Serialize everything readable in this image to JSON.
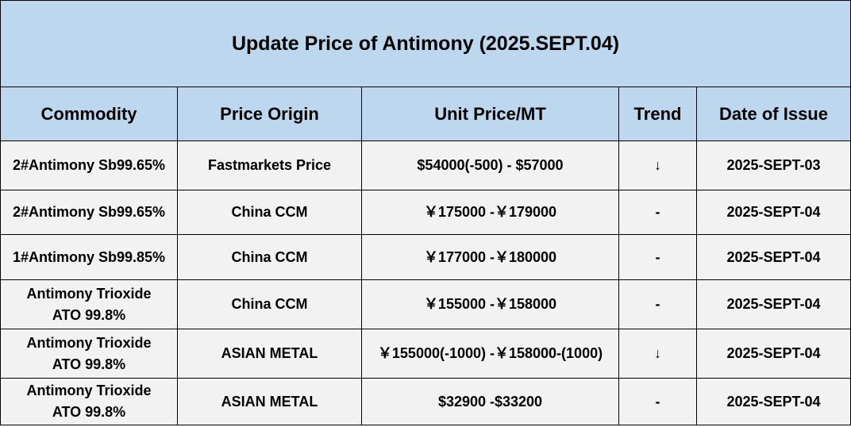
{
  "title": "Update Price of Antimony (2025.SEPT.04)",
  "columns": [
    "Commodity",
    "Price Origin",
    "Unit Price/MT",
    "Trend",
    "Date of Issue"
  ],
  "rows": [
    {
      "commodity": "2#Antimony  Sb99.65%",
      "origin": "Fastmarkets Price",
      "price": "$54000(-500)  - $57000",
      "trend": "↓",
      "date": "2025-SEPT-03"
    },
    {
      "commodity": "2#Antimony  Sb99.65%",
      "origin": "China CCM",
      "price": "￥175000  -￥179000",
      "trend": "-",
      "date": "2025-SEPT-04"
    },
    {
      "commodity": "1#Antimony  Sb99.85%",
      "origin": "China CCM",
      "price": "￥177000 -￥180000",
      "trend": "-",
      "date": "2025-SEPT-04"
    },
    {
      "commodity": "Antimony Trioxide\nATO 99.8%",
      "origin": "China CCM",
      "price": "￥155000 -￥158000",
      "trend": "-",
      "date": "2025-SEPT-04"
    },
    {
      "commodity": "Antimony Trioxide\nATO 99.8%",
      "origin": "ASIAN METAL",
      "price": "￥155000(-1000) -￥158000-(1000)",
      "trend": "↓",
      "date": "2025-SEPT-04"
    },
    {
      "commodity": "Antimony Trioxide\nATO 99.8%",
      "origin": "ASIAN METAL",
      "price": "$32900 -$33200",
      "trend": "-",
      "date": "2025-SEPT-04"
    }
  ]
}
